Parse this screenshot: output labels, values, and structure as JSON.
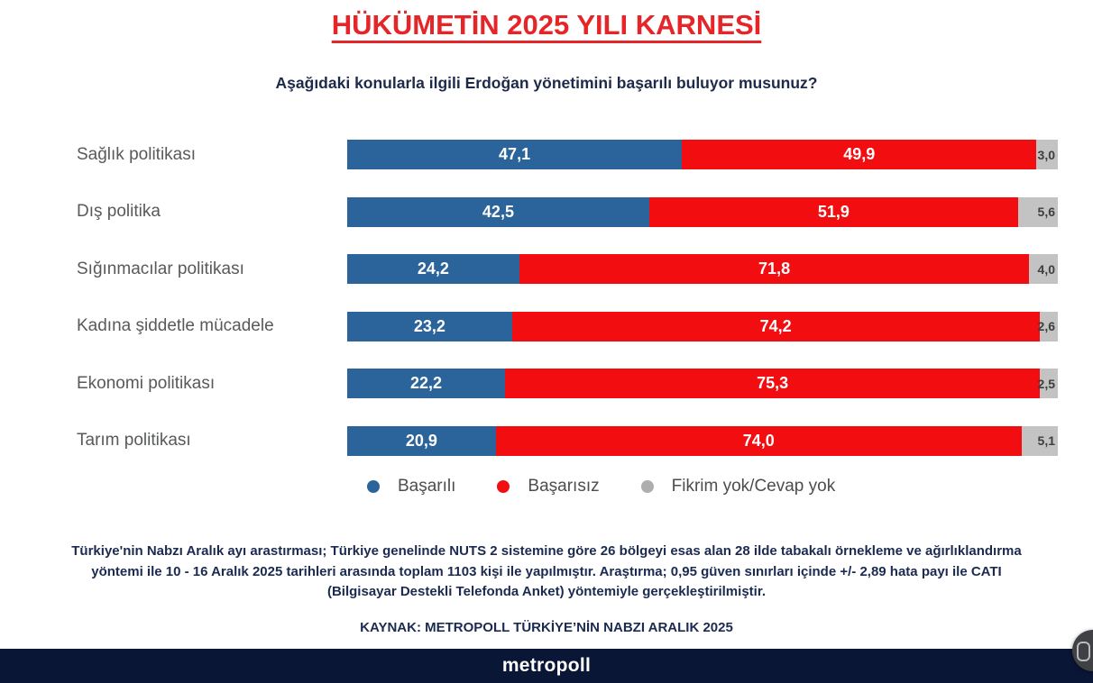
{
  "page": {
    "title": "HÜKÜMETİN 2025 YILI KARNESİ",
    "subtitle": "Aşağıdaki konularla ilgili Erdoğan yönetimini başarılı buluyor musunuz?"
  },
  "chart_data": {
    "type": "bar",
    "orientation": "horizontal",
    "stacked": true,
    "title": "HÜKÜMETİN 2025 YILI KARNESİ",
    "subtitle": "Aşağıdaki konularla ilgili Erdoğan yönetimini başarılı buluyor musunuz?",
    "xlim": [
      0,
      100
    ],
    "grid": false,
    "legend_position": "bottom",
    "value_format": "comma-decimal",
    "categories": [
      "Sağlık politikası",
      "Dış politika",
      "Sığınmacılar politikası",
      "Kadına şiddetle mücadele",
      "Ekonomi politikası",
      "Tarım politikası"
    ],
    "series": [
      {
        "key": "basarili",
        "name": "Başarılı",
        "color": "#2b649b",
        "dot_color": "#2b649b",
        "label_color": "#ffffff",
        "label_position": "center",
        "values": [
          47.1,
          42.5,
          24.2,
          23.2,
          22.2,
          20.9
        ],
        "labels": [
          "47,1",
          "42,5",
          "24,2",
          "23,2",
          "22,2",
          "20,9"
        ]
      },
      {
        "key": "basarisiz",
        "name": "Başarısız",
        "color": "#f20d11",
        "dot_color": "#f20d11",
        "label_color": "#ffffff",
        "label_position": "center",
        "values": [
          49.9,
          51.9,
          71.8,
          74.2,
          75.3,
          74.0
        ],
        "labels": [
          "49,9",
          "51,9",
          "71,8",
          "74,2",
          "75,3",
          "74,0"
        ]
      },
      {
        "key": "fikrim-yok",
        "name": "Fikrim yok/Cevap yok",
        "color": "#c3c3c3",
        "dot_color": "#aeaeae",
        "label_color": "#3e3e40",
        "label_position": "right",
        "values": [
          3.0,
          5.6,
          4.0,
          2.6,
          2.5,
          5.1
        ],
        "labels": [
          "3,0",
          "5,6",
          "4,0",
          "2,6",
          "2,5",
          "5,1"
        ]
      }
    ]
  },
  "footer": {
    "methodology": "Türkiye'nin Nabzı Aralık ayı arastırması; Türkiye genelinde NUTS 2 sistemine göre 26 bölgeyi esas alan 28 ilde tabakalı örnekleme ve ağırlıklandırma yöntemi ile 10 - 16 Aralık 2025 tarihleri arasında toplam 1103 kişi ile yapılmıştır. Araştırma; 0,95 güven sınırları içinde +/- 2,89 hata payı ile CATI (Bilgisayar Destekli Telefonda Anket) yöntemiyle gerçekleştirilmiştir.",
    "source": "KAYNAK: METROPOLL TÜRKİYE’NİN NABZI ARALIK 2025",
    "brand": "metropoll"
  },
  "colors": {
    "title_red": "#e62528",
    "navy_text": "#1b2a50",
    "navy_bar": "#0a1636",
    "category_label": "#58595b",
    "background": "#ffffff"
  }
}
